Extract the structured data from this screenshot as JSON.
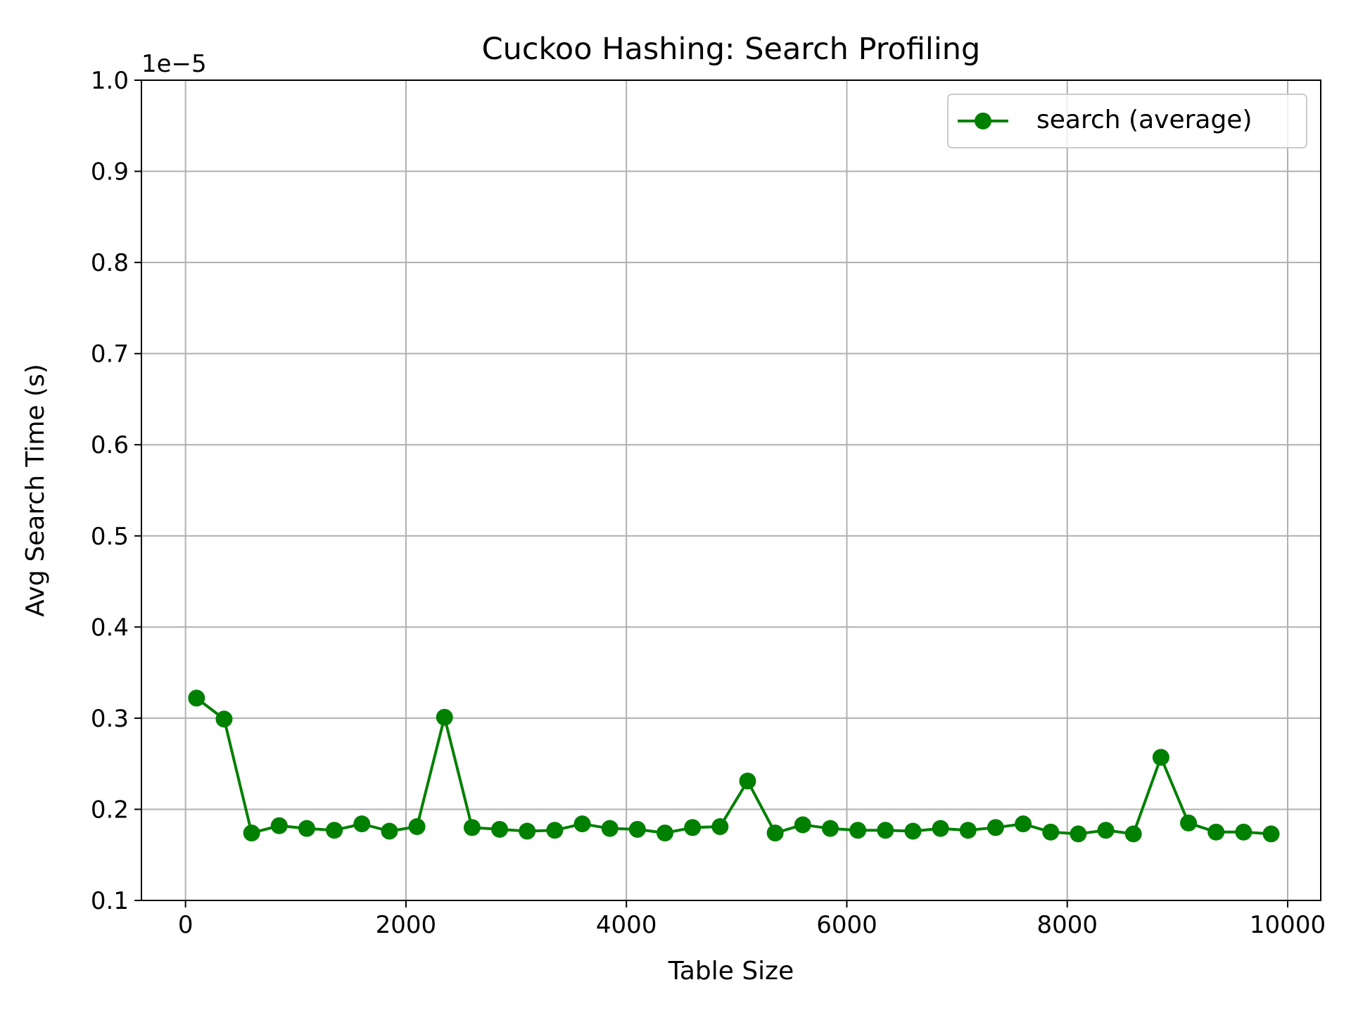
{
  "chart_data": {
    "type": "line",
    "title": "Cuckoo Hashing: Search Profiling",
    "xlabel": "Table Size",
    "ylabel": "Avg Search Time (s)",
    "y_offset_label": "1e−5",
    "xlim": [
      -400,
      10300
    ],
    "ylim": [
      0.1,
      1.0
    ],
    "x_ticks": [
      0,
      2000,
      4000,
      6000,
      8000,
      10000
    ],
    "x_tick_labels": [
      "0",
      "2000",
      "4000",
      "6000",
      "8000",
      "10000"
    ],
    "y_ticks": [
      0.1,
      0.2,
      0.3,
      0.4,
      0.5,
      0.6,
      0.7,
      0.8,
      0.9,
      1.0
    ],
    "y_tick_labels": [
      "0.1",
      "0.2",
      "0.3",
      "0.4",
      "0.5",
      "0.6",
      "0.7",
      "0.8",
      "0.9",
      "1.0"
    ],
    "grid": true,
    "legend_position": "top-right",
    "series": [
      {
        "name": "search (average)",
        "color": "#008000",
        "marker": "circle",
        "x": [
          100,
          350,
          600,
          850,
          1100,
          1350,
          1600,
          1850,
          2100,
          2350,
          2600,
          2850,
          3100,
          3350,
          3600,
          3850,
          4100,
          4350,
          4600,
          4850,
          5100,
          5350,
          5600,
          5850,
          6100,
          6350,
          6600,
          6850,
          7100,
          7350,
          7600,
          7850,
          8100,
          8350,
          8600,
          8850,
          9100,
          9350,
          9600,
          9850
        ],
        "values": [
          0.322,
          0.299,
          0.174,
          0.182,
          0.179,
          0.177,
          0.184,
          0.176,
          0.181,
          0.301,
          0.18,
          0.178,
          0.176,
          0.177,
          0.184,
          0.179,
          0.178,
          0.174,
          0.18,
          0.181,
          0.231,
          0.174,
          0.183,
          0.179,
          0.177,
          0.177,
          0.176,
          0.179,
          0.177,
          0.18,
          0.184,
          0.175,
          0.173,
          0.177,
          0.173,
          0.257,
          0.185,
          0.175,
          0.175,
          0.173
        ]
      }
    ]
  }
}
